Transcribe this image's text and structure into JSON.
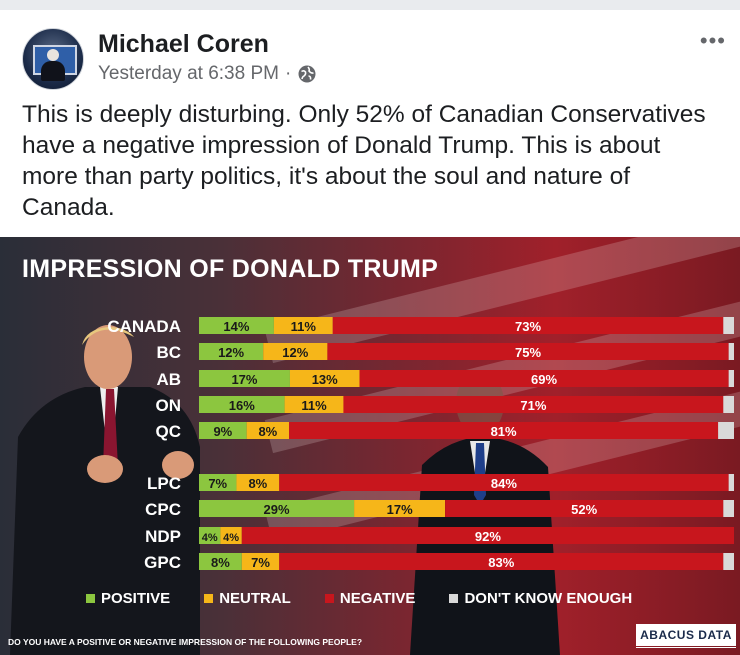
{
  "post": {
    "author": "Michael Coren",
    "time": "Yesterday at 6:38 PM",
    "separator": "·",
    "more_label": "•••",
    "audience_icon": "globe-icon",
    "text": "This is deeply disturbing. Only 52% of Canadian Conservatives have a negative impression of Donald Trump. This is about more than party politics, it's about the soul and nature of Canada."
  },
  "chart_data": {
    "type": "bar",
    "stacked": true,
    "orientation": "horizontal",
    "title": "IMPRESSION OF DONALD TRUMP",
    "question": "DO YOU HAVE A POSITIVE OR NEGATIVE IMPRESSION OF THE FOLLOWING PEOPLE?",
    "source": "ABACUS DATA",
    "categories": [
      "CANADA",
      "BC",
      "AB",
      "ON",
      "QC",
      "LPC",
      "CPC",
      "NDP",
      "GPC"
    ],
    "series": [
      {
        "name": "POSITIVE",
        "color": "#8cc63f",
        "values": [
          14,
          12,
          17,
          16,
          9,
          7,
          29,
          4,
          8
        ]
      },
      {
        "name": "NEUTRAL",
        "color": "#f6b619",
        "values": [
          11,
          12,
          13,
          11,
          8,
          8,
          17,
          4,
          7
        ]
      },
      {
        "name": "NEGATIVE",
        "color": "#c8161d",
        "values": [
          73,
          75,
          69,
          71,
          81,
          84,
          52,
          92,
          83
        ]
      },
      {
        "name": "DON'T KNOW ENOUGH",
        "color": "#d9d9d9",
        "values": [
          2,
          1,
          1,
          2,
          3,
          1,
          2,
          0,
          2
        ]
      }
    ],
    "value_suffix": "%",
    "legend_position": "bottom",
    "grid": false
  }
}
